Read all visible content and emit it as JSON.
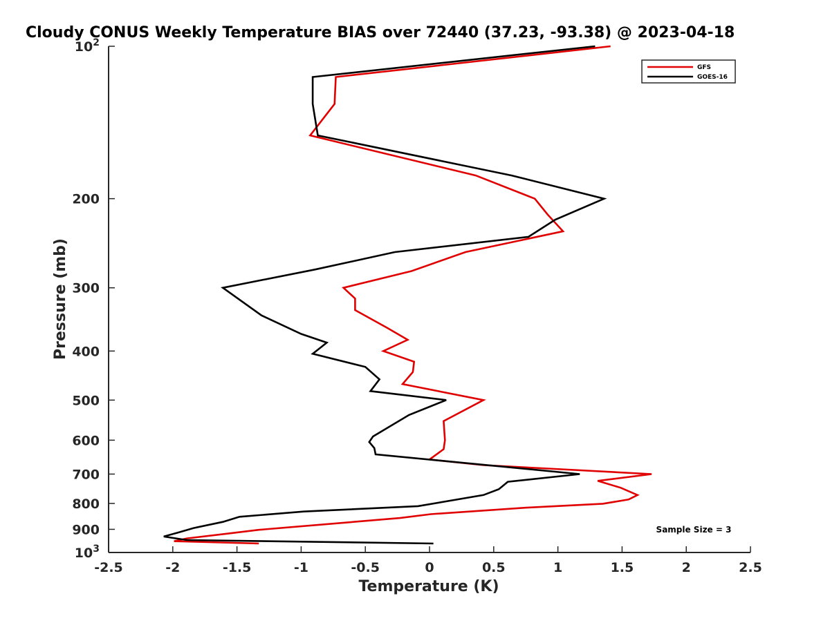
{
  "chart_data": {
    "type": "line",
    "title": "Cloudy CONUS Weekly Temperature BIAS over 72440 (37.23, -93.38) @ 2023-04-18",
    "xlabel": "Temperature (K)",
    "ylabel": "Pressure (mb)",
    "xlim": [
      -2.5,
      2.5
    ],
    "ylim": [
      100,
      1000
    ],
    "yscale": "log",
    "y_reversed": true,
    "x_ticks": [
      "-2.5",
      "-2",
      "-1.5",
      "-1",
      "-0.5",
      "0",
      "0.5",
      "1",
      "1.5",
      "2",
      "2.5"
    ],
    "y_ticks": [
      {
        "value": 100,
        "label": "10",
        "sup": "2"
      },
      {
        "value": 200,
        "label": "200"
      },
      {
        "value": 300,
        "label": "300"
      },
      {
        "value": 400,
        "label": "400"
      },
      {
        "value": 500,
        "label": "500"
      },
      {
        "value": 600,
        "label": "600"
      },
      {
        "value": 700,
        "label": "700"
      },
      {
        "value": 800,
        "label": "800"
      },
      {
        "value": 900,
        "label": "900"
      },
      {
        "value": 1000,
        "label": "10",
        "sup": "3"
      }
    ],
    "grid": false,
    "legend_position": "top-right",
    "annotation": "Sample Size = 3",
    "series": [
      {
        "name": "GFS",
        "color": "#e00000",
        "points": [
          [
            1.41,
            100
          ],
          [
            -0.73,
            115
          ],
          [
            -0.74,
            130
          ],
          [
            -0.93,
            150
          ],
          [
            0.36,
            180
          ],
          [
            0.82,
            200
          ],
          [
            0.92,
            215
          ],
          [
            1.04,
            232
          ],
          [
            0.28,
            255
          ],
          [
            -0.14,
            278
          ],
          [
            -0.67,
            300
          ],
          [
            -0.58,
            315
          ],
          [
            -0.58,
            332
          ],
          [
            -0.33,
            360
          ],
          [
            -0.17,
            380
          ],
          [
            -0.36,
            400
          ],
          [
            -0.12,
            420
          ],
          [
            -0.13,
            440
          ],
          [
            -0.21,
            465
          ],
          [
            0.42,
            500
          ],
          [
            0.11,
            550
          ],
          [
            0.12,
            600
          ],
          [
            0.11,
            625
          ],
          [
            0.0,
            655
          ],
          [
            0.42,
            672
          ],
          [
            1.73,
            700
          ],
          [
            1.31,
            722
          ],
          [
            1.49,
            745
          ],
          [
            1.62,
            770
          ],
          [
            1.55,
            786
          ],
          [
            1.35,
            801
          ],
          [
            0.77,
            815
          ],
          [
            0.01,
            840
          ],
          [
            -0.23,
            855
          ],
          [
            -1.33,
            902
          ],
          [
            -1.58,
            918
          ],
          [
            -1.89,
            938
          ],
          [
            -1.99,
            950
          ],
          [
            -1.33,
            960
          ]
        ]
      },
      {
        "name": "GOES-16",
        "color": "#000000",
        "points": [
          [
            1.29,
            100
          ],
          [
            -0.91,
            115
          ],
          [
            -0.91,
            130
          ],
          [
            -0.87,
            150
          ],
          [
            0.64,
            180
          ],
          [
            1.36,
            200
          ],
          [
            0.98,
            220
          ],
          [
            0.77,
            238
          ],
          [
            -0.27,
            255
          ],
          [
            -0.89,
            276
          ],
          [
            -1.61,
            300
          ],
          [
            -1.31,
            340
          ],
          [
            -1.0,
            370
          ],
          [
            -0.8,
            385
          ],
          [
            -0.91,
            405
          ],
          [
            -0.5,
            430
          ],
          [
            -0.39,
            455
          ],
          [
            -0.46,
            480
          ],
          [
            0.13,
            500
          ],
          [
            -0.16,
            535
          ],
          [
            -0.44,
            590
          ],
          [
            -0.47,
            605
          ],
          [
            -0.43,
            622
          ],
          [
            -0.42,
            640
          ],
          [
            1.17,
            700
          ],
          [
            0.61,
            725
          ],
          [
            0.54,
            750
          ],
          [
            0.42,
            770
          ],
          [
            -0.09,
            810
          ],
          [
            -0.98,
            830
          ],
          [
            -1.48,
            850
          ],
          [
            -1.61,
            870
          ],
          [
            -1.84,
            895
          ],
          [
            -1.97,
            915
          ],
          [
            -2.07,
            930
          ],
          [
            -1.89,
            945
          ],
          [
            0.03,
            960
          ]
        ]
      }
    ]
  }
}
